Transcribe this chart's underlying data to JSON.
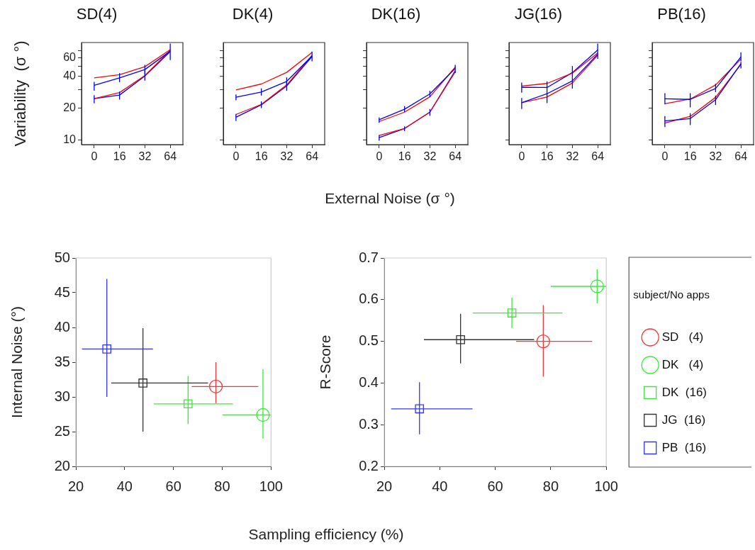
{
  "chart_data": [
    {
      "type": "line",
      "title": "SD(4)",
      "ylabel": "Variability  (σ °)",
      "categories": [
        "0",
        "16",
        "32",
        "64"
      ],
      "log": true,
      "ylim": [
        9,
        84
      ],
      "yticks": [
        10,
        20,
        {
          "value": 30,
          "label": null
        },
        40,
        {
          "value": 50,
          "label": null
        },
        60,
        {
          "value": 70,
          "label": null
        }
      ],
      "marker": "none",
      "series": [
        {
          "color": "#ff0000",
          "values": [
            38.8,
            41.5,
            49.5,
            72
          ]
        },
        {
          "color": "#0000ff",
          "values": [
            32.9,
            38.8,
            46.5,
            69.6
          ],
          "errors": [
            [
              29.2,
              35.5
            ],
            [
              35.3,
              43
            ],
            [
              41.9,
              51.5
            ],
            [
              57.2,
              82
            ]
          ]
        },
        {
          "color": "#ff0000",
          "values": [
            24.6,
            28.1,
            40.8,
            71
          ]
        },
        {
          "color": "#0000ff",
          "values": [
            24.6,
            26.6,
            40.4,
            69
          ],
          "errors": [
            [
              22.2,
              26.6
            ],
            [
              24.1,
              28.7
            ],
            [
              36.5,
              45.3
            ],
            null
          ]
        }
      ]
    },
    {
      "type": "line",
      "title": "DK(4)",
      "categories": [
        "0",
        "16",
        "32",
        "64"
      ],
      "log": true,
      "ylim": [
        9,
        84
      ],
      "yticks": [
        10,
        20,
        {
          "value": 30,
          "label": null
        },
        40,
        {
          "value": 50,
          "label": null
        },
        60,
        {
          "value": 70,
          "label": null
        }
      ],
      "marker": "none",
      "tick_labels": "x",
      "series": [
        {
          "color": "#ff0000",
          "values": [
            29.8,
            33.9,
            43.7,
            67.5
          ]
        },
        {
          "color": "#0000ff",
          "values": [
            25.4,
            28.4,
            35.9,
            62.5
          ],
          "errors": [
            [
              23.7,
              27
            ],
            [
              26.3,
              30.8
            ],
            [
              32.4,
              39.2
            ],
            [
              55.6,
              69
            ]
          ]
        },
        {
          "color": "#ff0000",
          "values": [
            17.4,
            21.7,
            33.2,
            63.4
          ]
        },
        {
          "color": "#0000ff",
          "values": [
            16.4,
            21.5,
            32.5,
            61.8
          ],
          "errors": [
            [
              15.1,
              17.6
            ],
            [
              20,
              23.2
            ],
            [
              29.2,
              35.4
            ],
            null
          ]
        }
      ]
    },
    {
      "type": "line",
      "title": "DK(16)",
      "xlabel": "External Noise (σ °)",
      "categories": [
        "0",
        "16",
        "32",
        "64"
      ],
      "log": true,
      "ylim": [
        9,
        84
      ],
      "yticks": [
        10,
        20,
        {
          "value": 30,
          "label": null
        },
        40,
        {
          "value": 50,
          "label": null
        },
        60,
        {
          "value": 70,
          "label": null
        }
      ],
      "marker": "none",
      "tick_labels": "x",
      "series": [
        {
          "color": "#0000ff",
          "values": [
            15.5,
            19.5,
            27.3,
            47.7
          ],
          "errors": [
            [
              14.5,
              16.3
            ],
            [
              18.3,
              20.9
            ],
            [
              25.4,
              29.2
            ],
            [
              43.1,
              51.6
            ]
          ]
        },
        {
          "color": "#ff0000",
          "values": [
            14.9,
            18.3,
            25.6,
            49
          ]
        },
        {
          "color": "#ff0000",
          "values": [
            11,
            12.8,
            18.3,
            44.2
          ]
        },
        {
          "color": "#0000ff",
          "values": [
            10.5,
            12.8,
            18.3,
            45.3
          ],
          "errors": [
            [
              9.8,
              11.1
            ],
            [
              12.1,
              13.4
            ],
            [
              16.9,
              19.6
            ],
            null
          ]
        }
      ]
    },
    {
      "type": "line",
      "title": "JG(16)",
      "categories": [
        "0",
        "16",
        "32",
        "64"
      ],
      "log": true,
      "ylim": [
        9,
        84
      ],
      "yticks": [
        10,
        20,
        {
          "value": 30,
          "label": null
        },
        40,
        {
          "value": 50,
          "label": null
        },
        60,
        {
          "value": 70,
          "label": null
        }
      ],
      "marker": "none",
      "tick_labels": "x",
      "series": [
        {
          "color": "#ff0000",
          "values": [
            32.4,
            34.3,
            43,
            66.8
          ]
        },
        {
          "color": "#0000ff",
          "values": [
            31.5,
            31.4,
            43.5,
            71.4
          ],
          "errors": [
            [
              28,
              35
            ],
            null,
            [
              38.8,
              50.2
            ],
            [
              58.7,
              82
            ]
          ]
        },
        {
          "color": "#0000ff",
          "values": [
            22.5,
            27.4,
            36.3,
            65.1
          ],
          "errors": [
            [
              19.6,
              25
            ],
            [
              22.3,
              35.9
            ],
            [
              30.7,
              38.8
            ],
            null
          ]
        },
        {
          "color": "#ff0000",
          "values": [
            22.5,
            25.5,
            34.6,
            63.4
          ]
        }
      ]
    },
    {
      "type": "line",
      "title": "PB(16)",
      "categories": [
        "0",
        "16",
        "32",
        "64"
      ],
      "log": true,
      "ylim": [
        9,
        84
      ],
      "yticks": [
        10,
        20,
        {
          "value": 30,
          "label": null
        },
        40,
        {
          "value": 50,
          "label": null
        },
        60,
        {
          "value": 70,
          "label": null
        }
      ],
      "marker": "none",
      "tick_labels": "x",
      "series": [
        {
          "color": "#0000ff",
          "values": [
            24.5,
            24.2,
            30.7,
            61.2
          ],
          "errors": [
            [
              21.7,
              27.7
            ],
            [
              20.3,
              27.7
            ],
            [
              28.4,
              34
            ],
            [
              55.7,
              67.6
            ]
          ]
        },
        {
          "color": "#ff0000",
          "values": [
            22,
            24.4,
            33.2,
            58.7
          ]
        },
        {
          "color": "#0000ff",
          "values": [
            15.1,
            15.9,
            24,
            52.9
          ],
          "errors": [
            [
              13.2,
              16.8
            ],
            [
              13.8,
              17.9
            ],
            [
              21.4,
              26.3
            ],
            [
              47.6,
              55.1
            ]
          ]
        },
        {
          "color": "#ff0000",
          "values": [
            14.4,
            16.7,
            25.3,
            52.1
          ]
        }
      ]
    },
    {
      "type": "scatter",
      "ylabel": "Internal Noise (°)",
      "xlabel": "Sampling efficiency (%)",
      "xlim": [
        20,
        100
      ],
      "xticks": [
        20,
        40,
        60,
        80,
        100
      ],
      "ylim": [
        20,
        50
      ],
      "yticks": [
        20,
        25,
        30,
        35,
        40,
        45,
        50
      ],
      "series": [
        {
          "color": "#ff3333",
          "marker": "circle",
          "x": [
            77.4
          ],
          "values": [
            31.5
          ],
          "errors": [
            [
              29.1,
              35
            ]
          ],
          "xerrors": [
            [
              67.5,
              94.8
            ]
          ]
        },
        {
          "color": "#33ee33",
          "marker": "circle",
          "x": [
            96.7
          ],
          "values": [
            27.4
          ],
          "errors": [
            [
              24,
              34
            ]
          ],
          "xerrors": [
            [
              80.1,
              99.8
            ]
          ]
        },
        {
          "color": "#33ee33",
          "marker": "square",
          "x": [
            66
          ],
          "values": [
            29
          ],
          "errors": [
            [
              26.1,
              33
            ]
          ],
          "xerrors": [
            [
              51.9,
              84.4
            ]
          ]
        },
        {
          "color": "#333333",
          "marker": "square",
          "x": [
            47.5
          ],
          "values": [
            32
          ],
          "errors": [
            [
              25,
              39.9
            ]
          ],
          "xerrors": [
            [
              34.5,
              74.2
            ]
          ]
        },
        {
          "color": "#3333ff",
          "marker": "square",
          "x": [
            32.7
          ],
          "values": [
            36.9
          ],
          "errors": [
            [
              30,
              47
            ]
          ],
          "xerrors": [
            [
              22.5,
              51.6
            ]
          ]
        }
      ]
    },
    {
      "type": "scatter",
      "ylabel": "R-Score",
      "xlim": [
        20,
        100
      ],
      "xticks": [
        20,
        40,
        60,
        80,
        100
      ],
      "ylim": [
        0.2,
        0.7
      ],
      "yticks": [
        0.2,
        0.3,
        0.4,
        0.5,
        0.6,
        0.7
      ],
      "legend": "right",
      "legend_title": "subject/No apps",
      "series": [
        {
          "name": "SD   (4)",
          "color": "#ff3333",
          "marker": "circle",
          "x": [
            77.3
          ],
          "values": [
            0.5
          ],
          "errors": [
            [
              0.415,
              0.587
            ]
          ],
          "xerrors": [
            [
              67.5,
              94.9
            ]
          ]
        },
        {
          "name": "DK   (4)",
          "color": "#33ee33",
          "marker": "circle",
          "x": [
            96.7
          ],
          "values": [
            0.632
          ],
          "errors": [
            [
              0.591,
              0.673
            ]
          ],
          "xerrors": [
            [
              80,
              99.9
            ]
          ]
        },
        {
          "name": "DK  (16)",
          "color": "#33ee33",
          "marker": "square",
          "x": [
            66
          ],
          "values": [
            0.568
          ],
          "errors": [
            [
              0.532,
              0.605
            ]
          ],
          "xerrors": [
            [
              51.9,
              84.2
            ]
          ]
        },
        {
          "name": "JG  (16)",
          "color": "#333333",
          "marker": "square",
          "x": [
            47.5
          ],
          "values": [
            0.504
          ],
          "errors": [
            [
              0.447,
              0.566
            ]
          ],
          "xerrors": [
            [
              34.3,
              74
            ]
          ]
        },
        {
          "name": "PB  (16)",
          "color": "#3333ff",
          "marker": "square",
          "x": [
            32.7
          ],
          "values": [
            0.338
          ],
          "errors": [
            [
              0.277,
              0.402
            ]
          ],
          "xerrors": [
            [
              22.5,
              51.8
            ]
          ]
        }
      ]
    }
  ]
}
